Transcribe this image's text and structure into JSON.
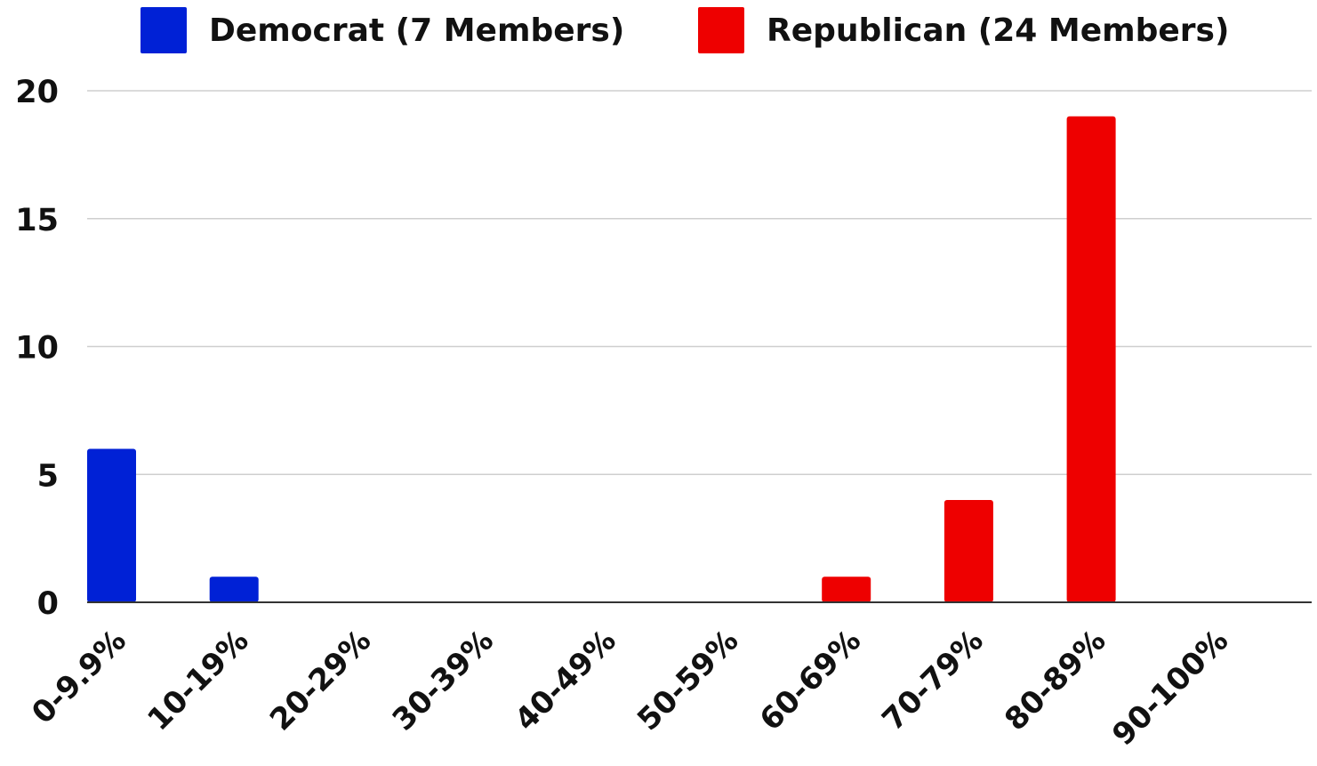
{
  "chart_data": {
    "type": "bar",
    "categories": [
      "0-9.9%",
      "10-19%",
      "20-29%",
      "30-39%",
      "40-49%",
      "50-59%",
      "60-69%",
      "70-79%",
      "80-89%",
      "90-100%"
    ],
    "series": [
      {
        "name": "Democrat (7 Members)",
        "color": "#0021d6",
        "values": [
          6,
          1,
          0,
          0,
          0,
          0,
          0,
          0,
          0,
          0
        ]
      },
      {
        "name": "Republican (24 Members)",
        "color": "#ee0000",
        "values": [
          0,
          0,
          0,
          0,
          0,
          0,
          1,
          4,
          19,
          0
        ]
      }
    ],
    "ylim": [
      0,
      20
    ],
    "yticks": [
      "0",
      "5",
      "10",
      "15",
      "20"
    ],
    "grid": true,
    "legend_position": "top"
  }
}
